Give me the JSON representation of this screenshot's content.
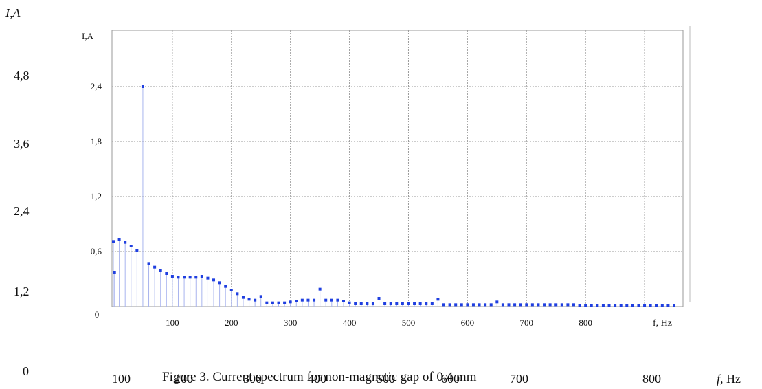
{
  "outer_axes": {
    "y_title": "I,A",
    "y_ticks": [
      "4,8",
      "3,6",
      "2,4",
      "1,2",
      "0"
    ],
    "x_ticks": [
      "100",
      "200",
      "300",
      "400",
      "500",
      "600",
      "700",
      "800"
    ],
    "x_title": "f, Hz"
  },
  "caption": "Figure 3. Current spectrum for non-magnetic gap of 0.4 mm",
  "chart_data": {
    "type": "scatter",
    "style": "stem plot (vertical lines with square markers)",
    "ylabel": "I,A",
    "xlabel": "f, Hz",
    "xlim": [
      0,
      950
    ],
    "ylim": [
      0,
      2.7
    ],
    "yticks": [
      "0,6",
      "1,2",
      "1,8",
      "2,4"
    ],
    "ytick_zero": "0",
    "xticks": [
      "100",
      "200",
      "300",
      "400",
      "500",
      "600",
      "700",
      "800"
    ],
    "grid": true,
    "marker_color": "#1f3fe0",
    "stem_color": "#a8b4ee",
    "series": [
      {
        "x": [
          0,
          2,
          10,
          20,
          30,
          40,
          50,
          60,
          70,
          80,
          90,
          100,
          110,
          120,
          130,
          140,
          150,
          160,
          170,
          180,
          190,
          200,
          210,
          220,
          230,
          240,
          250,
          260,
          270,
          280,
          290,
          300,
          310,
          320,
          330,
          340,
          350,
          360,
          370,
          380,
          390,
          400,
          410,
          420,
          430,
          440,
          450,
          460,
          470,
          480,
          490,
          500,
          510,
          520,
          530,
          540,
          550,
          560,
          570,
          580,
          590,
          600,
          610,
          620,
          630,
          640,
          650,
          660,
          670,
          680,
          690,
          700,
          710,
          720,
          730,
          740,
          750,
          760,
          770,
          780,
          790,
          800,
          810,
          820,
          830,
          840,
          850,
          860,
          870,
          880,
          890,
          900,
          910,
          920,
          930,
          940,
          950
        ],
        "y": [
          0.71,
          0.37,
          0.73,
          0.7,
          0.66,
          0.61,
          2.4,
          0.47,
          0.43,
          0.39,
          0.36,
          0.33,
          0.32,
          0.32,
          0.32,
          0.32,
          0.33,
          0.31,
          0.29,
          0.26,
          0.22,
          0.18,
          0.14,
          0.1,
          0.08,
          0.07,
          0.11,
          0.04,
          0.04,
          0.04,
          0.04,
          0.05,
          0.06,
          0.07,
          0.07,
          0.07,
          0.19,
          0.07,
          0.07,
          0.07,
          0.06,
          0.04,
          0.03,
          0.03,
          0.03,
          0.03,
          0.09,
          0.03,
          0.03,
          0.03,
          0.03,
          0.03,
          0.03,
          0.03,
          0.03,
          0.03,
          0.08,
          0.02,
          0.02,
          0.02,
          0.02,
          0.02,
          0.02,
          0.02,
          0.02,
          0.02,
          0.05,
          0.02,
          0.02,
          0.02,
          0.02,
          0.02,
          0.02,
          0.02,
          0.02,
          0.02,
          0.02,
          0.02,
          0.02,
          0.02,
          0.01,
          0.01,
          0.01,
          0.01,
          0.01,
          0.01,
          0.01,
          0.01,
          0.01,
          0.01,
          0.01,
          0.01,
          0.01,
          0.01,
          0.01,
          0.01,
          0.01
        ]
      }
    ]
  }
}
